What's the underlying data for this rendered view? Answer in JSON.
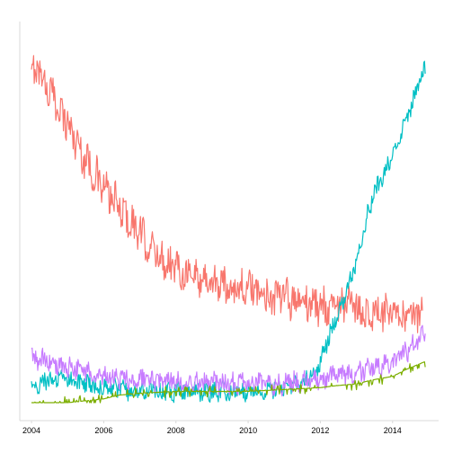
{
  "chart_data": {
    "type": "line",
    "title": "",
    "xlabel": "",
    "ylabel": "",
    "x_range": [
      "2003-10-01",
      "2015-04-01"
    ],
    "x_ticks": [
      "2004",
      "2006",
      "2008",
      "2010",
      "2012",
      "2014"
    ],
    "ylim": [
      0,
      100
    ],
    "y_ticks": [],
    "grid": false,
    "legend": "none",
    "axis_color": "#d9d9d9",
    "series": [
      {
        "color": "#F8766D",
        "style": "noisy-seasonal",
        "amplitude": 4.5,
        "points": [
          [
            "2004-01",
            86
          ],
          [
            "2004-03",
            90
          ],
          [
            "2004-06",
            84
          ],
          [
            "2004-09",
            80
          ],
          [
            "2004-12",
            76
          ],
          [
            "2005-03",
            71
          ],
          [
            "2005-06",
            66
          ],
          [
            "2005-09",
            62
          ],
          [
            "2005-12",
            58
          ],
          [
            "2006-03",
            55
          ],
          [
            "2006-06",
            52
          ],
          [
            "2006-09",
            49
          ],
          [
            "2006-12",
            46
          ],
          [
            "2007-03",
            43
          ],
          [
            "2007-06",
            40
          ],
          [
            "2007-09",
            38
          ],
          [
            "2008-01",
            36
          ],
          [
            "2008-06",
            34
          ],
          [
            "2009-01",
            32
          ],
          [
            "2009-06",
            31
          ],
          [
            "2010-01",
            30
          ],
          [
            "2010-06",
            29
          ],
          [
            "2011-01",
            28
          ],
          [
            "2011-06",
            27
          ],
          [
            "2012-01",
            26
          ],
          [
            "2012-06",
            26
          ],
          [
            "2013-01",
            25
          ],
          [
            "2013-06",
            24
          ],
          [
            "2014-01",
            23
          ],
          [
            "2014-06",
            22
          ],
          [
            "2014-11",
            25
          ]
        ]
      },
      {
        "color": "#00BFC4",
        "style": "noisy-seasonal",
        "amplitude": 2.2,
        "points": [
          [
            "2004-01",
            4
          ],
          [
            "2004-06",
            6
          ],
          [
            "2005-01",
            6
          ],
          [
            "2005-06",
            5
          ],
          [
            "2006-01",
            4
          ],
          [
            "2007-01",
            3
          ],
          [
            "2008-01",
            3
          ],
          [
            "2009-01",
            3
          ],
          [
            "2010-01",
            3
          ],
          [
            "2011-01",
            4
          ],
          [
            "2011-06",
            5
          ],
          [
            "2011-10",
            7
          ],
          [
            "2012-01",
            11
          ],
          [
            "2012-04",
            18
          ],
          [
            "2012-07",
            24
          ],
          [
            "2012-10",
            30
          ],
          [
            "2013-01",
            38
          ],
          [
            "2013-04",
            48
          ],
          [
            "2013-07",
            56
          ],
          [
            "2013-10",
            61
          ],
          [
            "2014-01",
            66
          ],
          [
            "2014-04",
            72
          ],
          [
            "2014-07",
            78
          ],
          [
            "2014-10",
            86
          ],
          [
            "2014-12",
            90
          ]
        ]
      },
      {
        "color": "#C77CFF",
        "style": "noisy-seasonal",
        "amplitude": 2.5,
        "points": [
          [
            "2004-01",
            12
          ],
          [
            "2004-06",
            11
          ],
          [
            "2005-01",
            9
          ],
          [
            "2005-06",
            8
          ],
          [
            "2006-01",
            7
          ],
          [
            "2007-01",
            6
          ],
          [
            "2008-01",
            5.5
          ],
          [
            "2009-01",
            5
          ],
          [
            "2010-01",
            5
          ],
          [
            "2011-01",
            5
          ],
          [
            "2011-06",
            6
          ],
          [
            "2012-01",
            6
          ],
          [
            "2012-06",
            7
          ],
          [
            "2013-01",
            8
          ],
          [
            "2013-06",
            9
          ],
          [
            "2014-01",
            11
          ],
          [
            "2014-06",
            14
          ],
          [
            "2014-12",
            19
          ]
        ]
      },
      {
        "color": "#7CAE00",
        "style": "step-noisy",
        "amplitude": 0.8,
        "points": [
          [
            "2004-01",
            0
          ],
          [
            "2005-01",
            0
          ],
          [
            "2006-01",
            1
          ],
          [
            "2006-06",
            2
          ],
          [
            "2007-01",
            2.5
          ],
          [
            "2008-01",
            3
          ],
          [
            "2009-01",
            3
          ],
          [
            "2010-01",
            3
          ],
          [
            "2011-01",
            3.5
          ],
          [
            "2012-01",
            4
          ],
          [
            "2012-06",
            4.5
          ],
          [
            "2013-01",
            5
          ],
          [
            "2013-06",
            6
          ],
          [
            "2014-01",
            7
          ],
          [
            "2014-06",
            9
          ],
          [
            "2014-12",
            11
          ]
        ]
      }
    ]
  }
}
